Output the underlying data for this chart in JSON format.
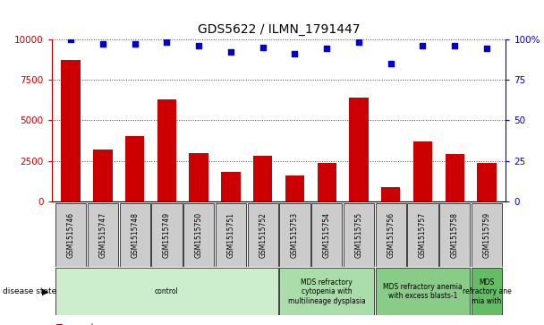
{
  "title": "GDS5622 / ILMN_1791447",
  "samples": [
    "GSM1515746",
    "GSM1515747",
    "GSM1515748",
    "GSM1515749",
    "GSM1515750",
    "GSM1515751",
    "GSM1515752",
    "GSM1515753",
    "GSM1515754",
    "GSM1515755",
    "GSM1515756",
    "GSM1515757",
    "GSM1515758",
    "GSM1515759"
  ],
  "counts": [
    8700,
    3200,
    4000,
    6300,
    3000,
    1800,
    2800,
    1600,
    2400,
    6400,
    900,
    3700,
    2900,
    2400
  ],
  "percentiles": [
    100,
    97,
    97,
    98,
    96,
    92,
    95,
    91,
    94,
    98,
    85,
    96,
    96,
    94
  ],
  "disease_groups": [
    {
      "label": "control",
      "start": 0,
      "end": 7,
      "color": "#cceecc"
    },
    {
      "label": "MDS refractory\ncytopenia with\nmultilineage dysplasia",
      "start": 7,
      "end": 10,
      "color": "#aaddaa"
    },
    {
      "label": "MDS refractory anemia\nwith excess blasts-1",
      "start": 10,
      "end": 13,
      "color": "#88cc88"
    },
    {
      "label": "MDS\nrefractory ane\nmia with",
      "start": 13,
      "end": 14,
      "color": "#66bb66"
    }
  ],
  "bar_color": "#cc0000",
  "dot_color": "#0000cc",
  "ylim_left": [
    0,
    10000
  ],
  "ylim_right": [
    0,
    100
  ],
  "yticks_left": [
    0,
    2500,
    5000,
    7500,
    10000
  ],
  "yticks_right": [
    0,
    25,
    50,
    75,
    100
  ],
  "left_axis_color": "#cc0000",
  "right_axis_color": "#0000cc",
  "bg_color": "#ffffff",
  "tick_label_bg": "#cccccc",
  "title_fontsize": 10,
  "bar_width": 0.6
}
